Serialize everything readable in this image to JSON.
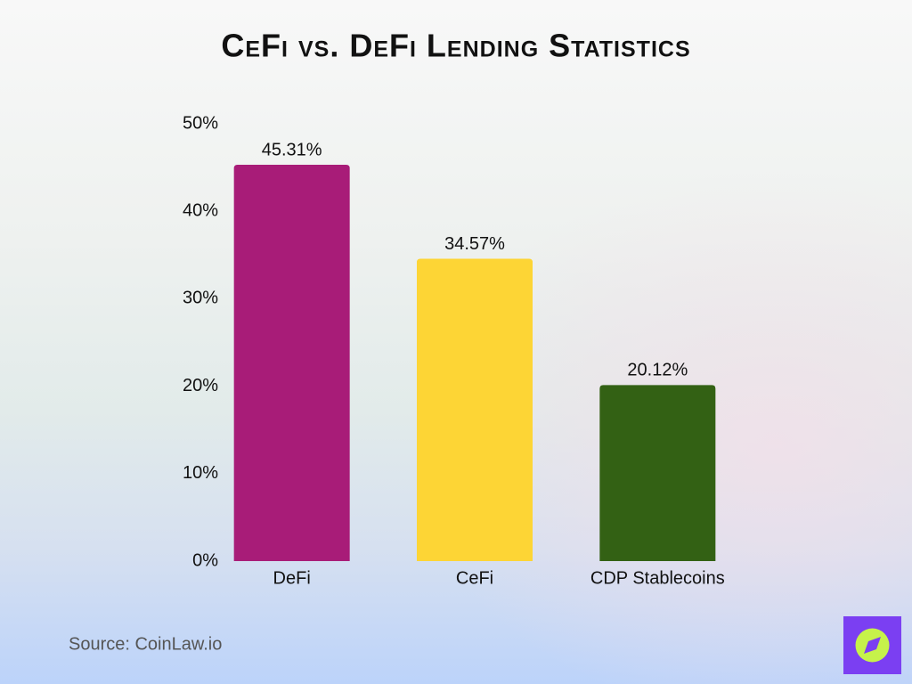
{
  "chart_data": {
    "type": "bar",
    "title": "CeFi vs. DeFi Lending Statistics",
    "categories": [
      "DeFi",
      "CeFi",
      "CDP Stablecoins"
    ],
    "values": [
      45.31,
      34.57,
      20.12
    ],
    "value_labels": [
      "45.31%",
      "34.57%",
      "20.12%"
    ],
    "colors": [
      "#a81c78",
      "#fdd535",
      "#336114"
    ],
    "ylim": [
      0,
      50
    ],
    "yticks": [
      {
        "value": 0,
        "label": "0%"
      },
      {
        "value": 10,
        "label": "10%"
      },
      {
        "value": 20,
        "label": "20%"
      },
      {
        "value": 30,
        "label": "30%"
      },
      {
        "value": 40,
        "label": "40%"
      },
      {
        "value": 50,
        "label": "50%"
      }
    ],
    "grid": false,
    "source": "Source: CoinLaw.io"
  }
}
